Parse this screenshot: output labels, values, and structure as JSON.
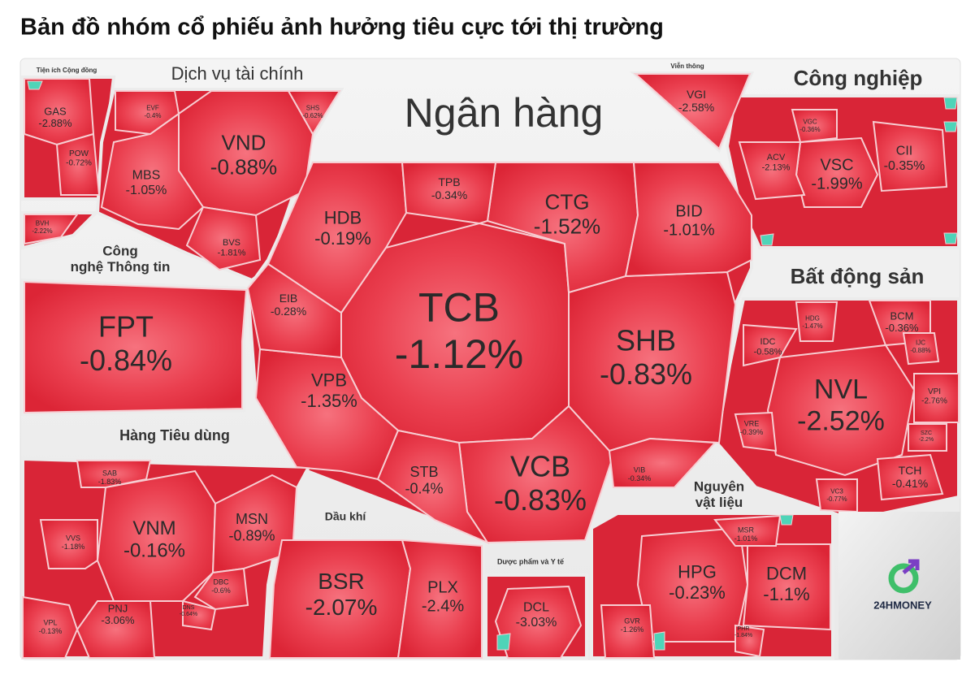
{
  "title": "Bản đồ nhóm cổ phiếu ảnh hưởng tiêu cực tới thị trường",
  "sectors": [
    {
      "name": [
        "Tiện ích Cộng đồng"
      ],
      "stocks": [
        {
          "ticker": "GAS",
          "change": "-2.88%"
        },
        {
          "ticker": "POW",
          "change": "-0.72%"
        }
      ]
    },
    {
      "stocks": [
        {
          "ticker": "BVH",
          "change": "-2.22%"
        }
      ]
    },
    {
      "name": [
        "Dịch vụ tài chính"
      ],
      "stocks": [
        {
          "ticker": "VND",
          "change": "-0.88%"
        },
        {
          "ticker": "MBS",
          "change": "-1.05%"
        },
        {
          "ticker": "EVF",
          "change": "-0.4%"
        },
        {
          "ticker": "SHS",
          "change": "-0.62%"
        },
        {
          "ticker": "BVS",
          "change": "-1.81%"
        }
      ]
    },
    {
      "name": [
        "Ngân hàng"
      ],
      "stocks": [
        {
          "ticker": "TCB",
          "change": "-1.12%"
        },
        {
          "ticker": "SHB",
          "change": "-0.83%"
        },
        {
          "ticker": "VCB",
          "change": "-0.83%"
        },
        {
          "ticker": "VPB",
          "change": "-1.35%"
        },
        {
          "ticker": "HDB",
          "change": "-0.19%"
        },
        {
          "ticker": "CTG",
          "change": "-1.52%"
        },
        {
          "ticker": "BID",
          "change": "-1.01%"
        },
        {
          "ticker": "TPB",
          "change": "-0.34%"
        },
        {
          "ticker": "EIB",
          "change": "-0.28%"
        },
        {
          "ticker": "STB",
          "change": "-0.4%"
        },
        {
          "ticker": "VIB",
          "change": "-0.34%"
        }
      ]
    },
    {
      "name": [
        "Viễn thông"
      ],
      "stocks": [
        {
          "ticker": "VGI",
          "change": "-2.58%"
        }
      ]
    },
    {
      "name": [
        "Công nghiệp"
      ],
      "stocks": [
        {
          "ticker": "VSC",
          "change": "-1.99%"
        },
        {
          "ticker": "CII",
          "change": "-0.35%"
        },
        {
          "ticker": "ACV",
          "change": "-2.13%"
        },
        {
          "ticker": "VGC",
          "change": "-0.36%"
        }
      ]
    },
    {
      "name": [
        "Công",
        "nghệ Thông tin"
      ],
      "stocks": [
        {
          "ticker": "FPT",
          "change": "-0.84%"
        }
      ]
    },
    {
      "name": [
        "Bất động sản"
      ],
      "stocks": [
        {
          "ticker": "NVL",
          "change": "-2.52%"
        },
        {
          "ticker": "BCM",
          "change": "-0.36%"
        },
        {
          "ticker": "HDG",
          "change": "-1.47%"
        },
        {
          "ticker": "IDC",
          "change": "-0.58%"
        },
        {
          "ticker": "IJC",
          "change": "-0.88%"
        },
        {
          "ticker": "VPI",
          "change": "-2.76%"
        },
        {
          "ticker": "VRE",
          "change": "-0.39%"
        },
        {
          "ticker": "SZC",
          "change": "-2.2%"
        },
        {
          "ticker": "TCH",
          "change": "-0.41%"
        },
        {
          "ticker": "VC3",
          "change": "-0.77%"
        }
      ]
    },
    {
      "name": [
        "Hàng Tiêu dùng"
      ],
      "stocks": [
        {
          "ticker": "VNM",
          "change": "-0.16%"
        },
        {
          "ticker": "MSN",
          "change": "-0.89%"
        },
        {
          "ticker": "SAB",
          "change": "-1.83%"
        },
        {
          "ticker": "VVS",
          "change": "-1.18%"
        },
        {
          "ticker": "PNJ",
          "change": "-3.06%"
        },
        {
          "ticker": "DBC",
          "change": "-0.6%"
        },
        {
          "ticker": "DNS",
          "change": "-0.64%"
        },
        {
          "ticker": "VPL",
          "change": "-0.13%"
        }
      ]
    },
    {
      "name": [
        "Dầu khí"
      ],
      "stocks": [
        {
          "ticker": "BSR",
          "change": "-2.07%"
        },
        {
          "ticker": "PLX",
          "change": "-2.4%"
        }
      ]
    },
    {
      "name": [
        "Dược phẩm và Y tế"
      ],
      "stocks": [
        {
          "ticker": "DCL",
          "change": "-3.03%"
        }
      ]
    },
    {
      "name": [
        "Nguyên",
        "vật liệu"
      ],
      "stocks": [
        {
          "ticker": "HPG",
          "change": "-0.23%"
        },
        {
          "ticker": "DCM",
          "change": "-1.1%"
        },
        {
          "ticker": "MSR",
          "change": "-1.01%"
        },
        {
          "ticker": "GVR",
          "change": "-1.26%"
        },
        {
          "ticker": "PHR",
          "change": "-1.84%"
        }
      ]
    }
  ],
  "logo": "24HMONEY"
}
